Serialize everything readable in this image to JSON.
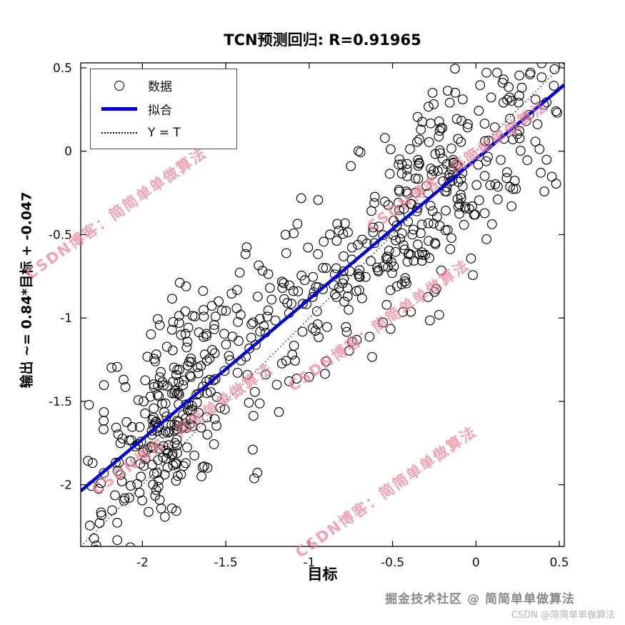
{
  "chart_data": {
    "type": "scatter",
    "title": "TCN预测回归: R=0.91965",
    "xlabel": "目标",
    "ylabel": "输出 ~= 0.84*目标 + -0.047",
    "r_value": 0.91965,
    "xlim": [
      -2.37,
      0.53
    ],
    "ylim": [
      -2.37,
      0.53
    ],
    "x_ticks": [
      -2,
      -1.5,
      -1,
      -0.5,
      0,
      0.5
    ],
    "x_tick_labels": [
      "-2",
      "-1.5",
      "-1",
      "-0.5",
      "0",
      "0.5"
    ],
    "y_ticks": [
      0.5,
      0,
      -0.5,
      -1,
      -1.5,
      -2
    ],
    "y_tick_labels": [
      "0.5",
      "0",
      "-0.5",
      "-1",
      "-1.5",
      "-2"
    ],
    "grid": false,
    "fit": {
      "label": "拟合",
      "slope": 0.84,
      "intercept": -0.047,
      "color": "#0000e0"
    },
    "identity_line": {
      "label": "Y = T",
      "style": "dotted",
      "color": "#000000"
    },
    "scatter": {
      "label": "数据",
      "marker": "open-circle",
      "marker_color": "#000000",
      "n": 650,
      "seed": 13,
      "x_min": -2.33,
      "x_max": 0.5,
      "noise_sd": 0.29,
      "clusters": [
        {
          "center": -1.8,
          "spread": 0.33,
          "weight": 0.17
        },
        {
          "center": -0.3,
          "spread": 0.38,
          "weight": 0.17
        }
      ]
    },
    "legend": {
      "position": "top-left",
      "entries": [
        "数据",
        "拟合",
        "Y = T"
      ]
    }
  },
  "watermark": {
    "text": "CSDN博客：简简单单做算法",
    "color": "#ee8296"
  },
  "credits": {
    "primary": "掘金技术社区 @ 简简单单做算法",
    "secondary": "CSDN @简简单单做算法"
  }
}
